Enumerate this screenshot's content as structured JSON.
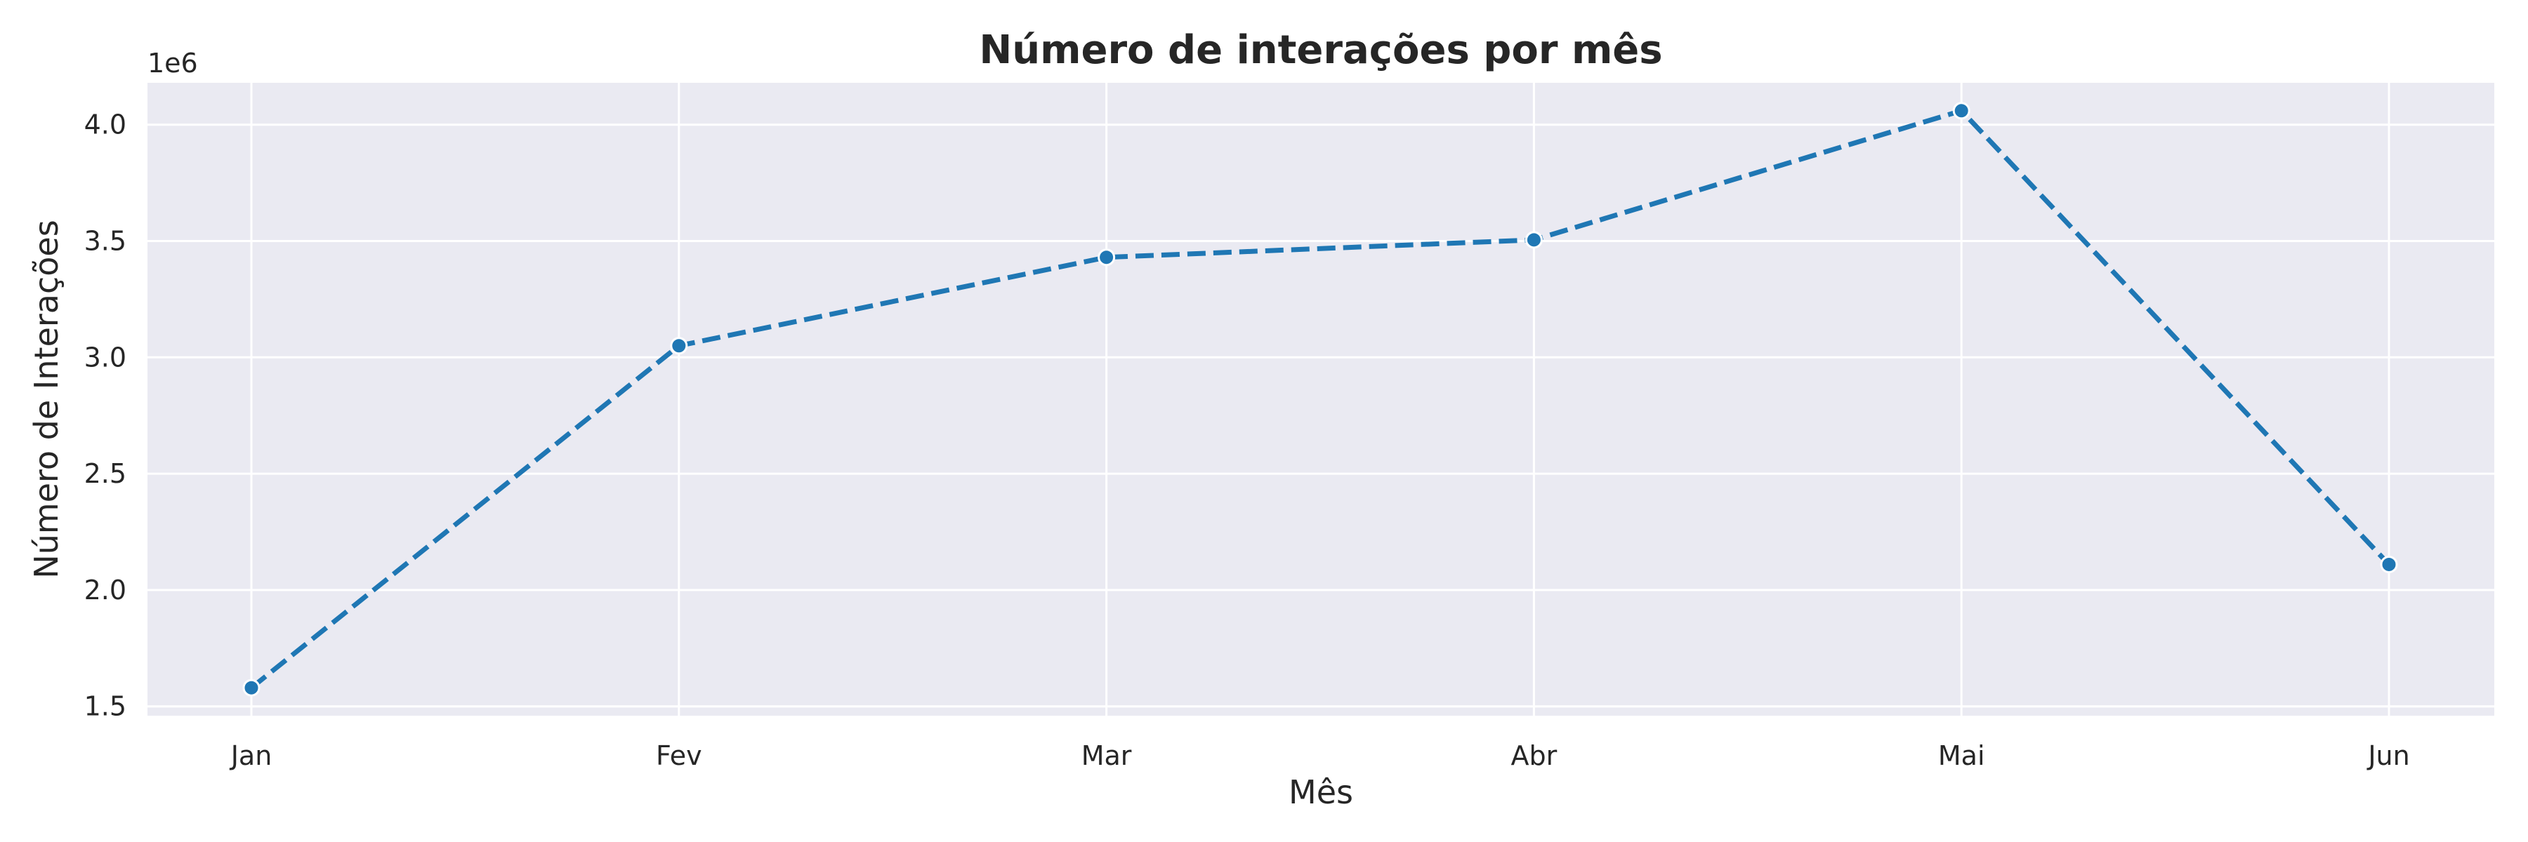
{
  "chart_data": {
    "type": "line",
    "title": "Número de interações por mês",
    "xlabel": "Mês",
    "ylabel": "Número de Interações",
    "y_offset_label": "1e6",
    "categories": [
      "Jan",
      "Fev",
      "Mar",
      "Abr",
      "Mai",
      "Jun"
    ],
    "series": [
      {
        "values": [
          1580000,
          3050000,
          3430000,
          3505000,
          4060000,
          2110000
        ]
      }
    ],
    "yticks": [
      1.5,
      2.0,
      2.5,
      3.0,
      3.5,
      4.0
    ],
    "ytick_labels": [
      "1.5",
      "2.0",
      "2.5",
      "3.0",
      "3.5",
      "4.0"
    ],
    "ylim": [
      1460000,
      4180000
    ],
    "grid": true,
    "line_style": "dashed",
    "marker": "circle",
    "colors": {
      "line": "#1f77b4",
      "plot_background": "#eaeaf2",
      "grid": "#ffffff",
      "text": "#262626"
    }
  }
}
